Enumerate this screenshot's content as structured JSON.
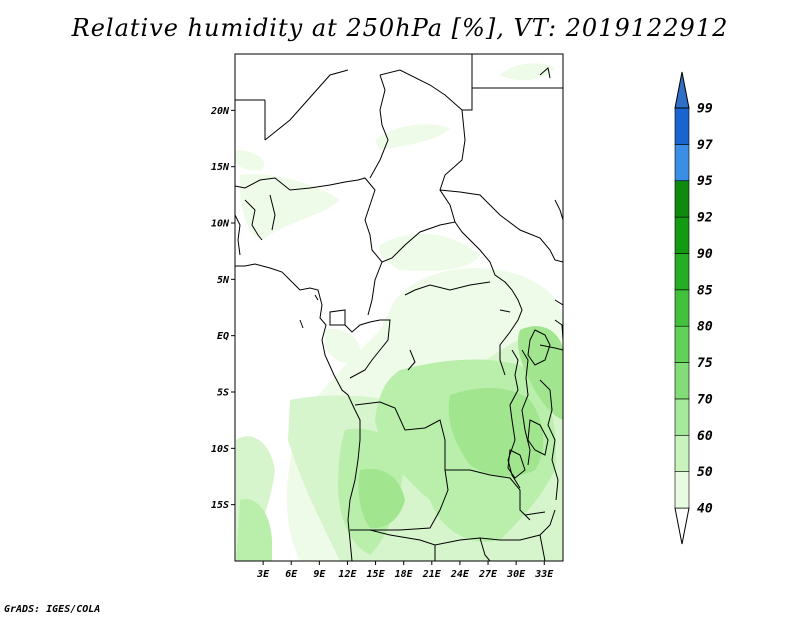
{
  "title": "Relative humidity at 250hPa [%], VT: 2019122912",
  "credit": "GrADS: IGES/COLA",
  "map": {
    "lon_range": [
      0,
      35
    ],
    "lat_range": [
      -20,
      25
    ],
    "lat_ticks": [
      {
        "value": 20,
        "label": "20N"
      },
      {
        "value": 15,
        "label": "15N"
      },
      {
        "value": 10,
        "label": "10N"
      },
      {
        "value": 5,
        "label": "5N"
      },
      {
        "value": 0,
        "label": "EQ"
      },
      {
        "value": -5,
        "label": "5S"
      },
      {
        "value": -10,
        "label": "10S"
      },
      {
        "value": -15,
        "label": "15S"
      }
    ],
    "lon_ticks": [
      {
        "value": 3,
        "label": "3E"
      },
      {
        "value": 6,
        "label": "6E"
      },
      {
        "value": 9,
        "label": "9E"
      },
      {
        "value": 12,
        "label": "12E"
      },
      {
        "value": 15,
        "label": "15E"
      },
      {
        "value": 18,
        "label": "18E"
      },
      {
        "value": 21,
        "label": "21E"
      },
      {
        "value": 24,
        "label": "24E"
      },
      {
        "value": 27,
        "label": "27E"
      },
      {
        "value": 30,
        "label": "30E"
      },
      {
        "value": 33,
        "label": "33E"
      }
    ]
  },
  "colorbar": {
    "levels": [
      "40",
      "50",
      "60",
      "70",
      "75",
      "80",
      "85",
      "90",
      "92",
      "95",
      "97",
      "99"
    ],
    "colors": [
      "#ffffff",
      "#e6fbe0",
      "#c8f3bd",
      "#a5e99a",
      "#82dd78",
      "#61d159",
      "#42c23c",
      "#25ad25",
      "#139a13",
      "#0f8a0f",
      "#3a8ee6",
      "#1a64d0",
      "#2f6fc7"
    ]
  },
  "chart_data": {
    "type": "heatmap",
    "variable": "Relative humidity",
    "level": "250hPa",
    "units": "%",
    "valid_time": "2019122912",
    "lon_range": [
      0,
      35
    ],
    "lat_range": [
      -20,
      25
    ],
    "contour_levels": [
      40,
      50,
      60,
      70,
      75,
      80,
      85,
      90,
      92,
      95,
      97,
      99
    ]
  }
}
